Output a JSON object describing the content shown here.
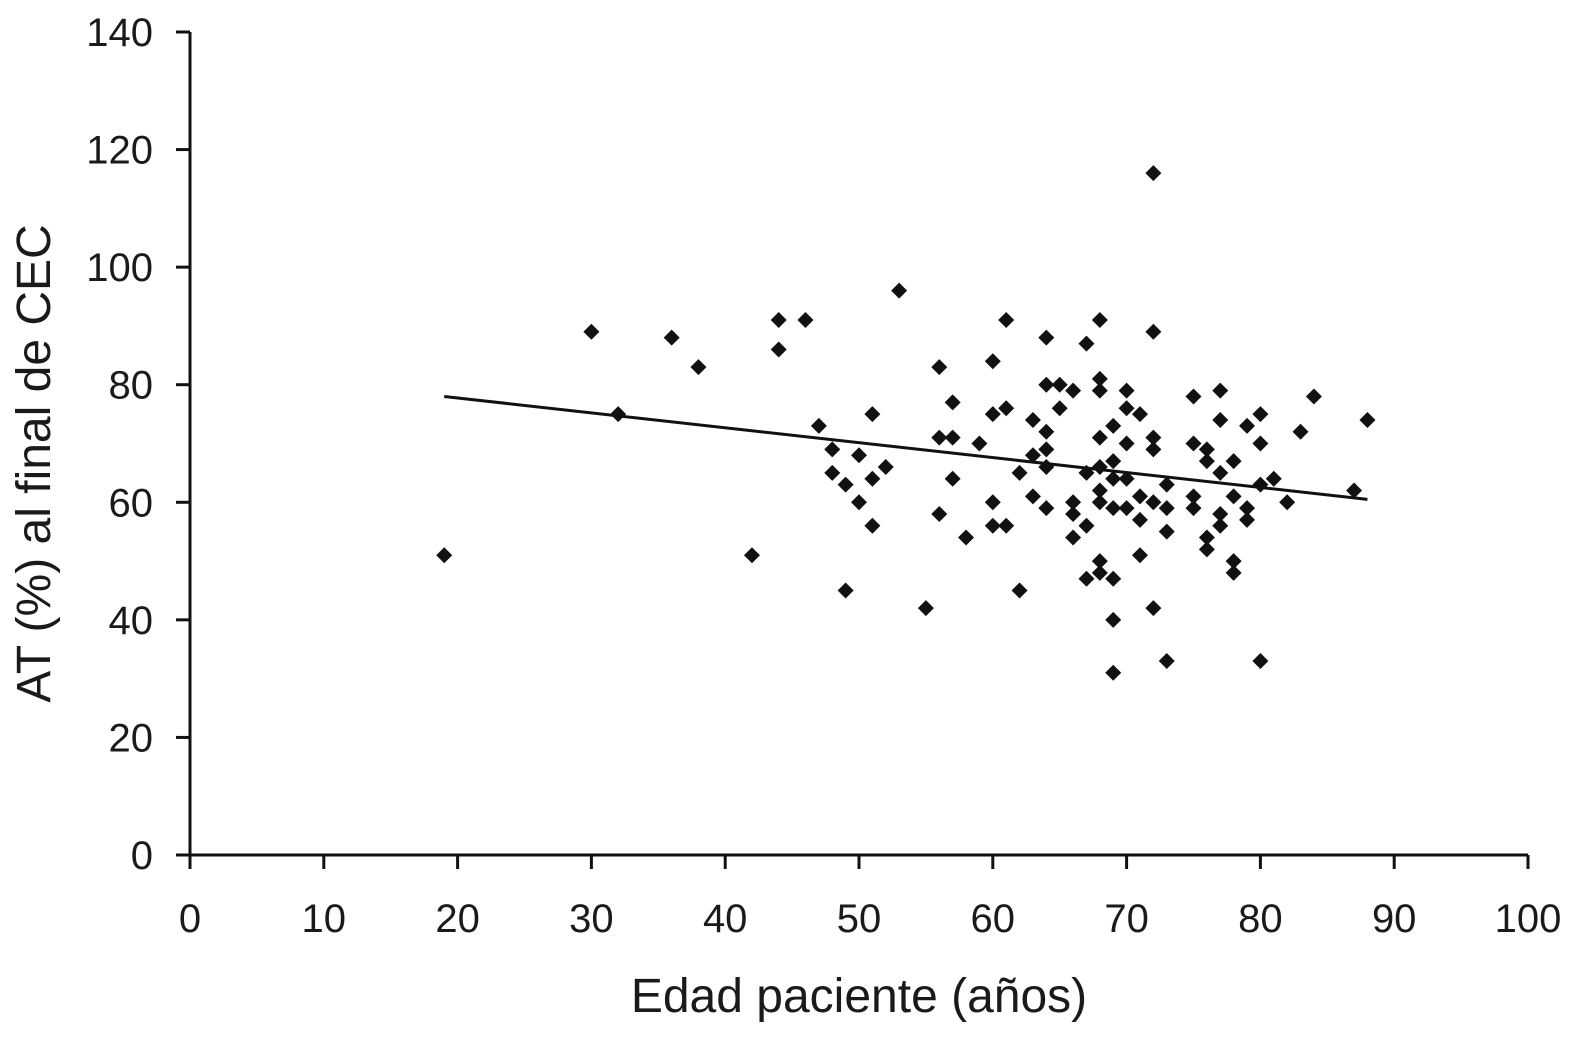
{
  "chart_data": {
    "type": "scatter",
    "title": "",
    "xlabel": "Edad paciente (años)",
    "ylabel": "AT (%) al final de CEC",
    "xlim": [
      0,
      100
    ],
    "ylim": [
      0,
      140
    ],
    "xticks": [
      0,
      10,
      20,
      30,
      40,
      50,
      60,
      70,
      80,
      90,
      100
    ],
    "yticks": [
      0,
      20,
      40,
      60,
      80,
      100,
      120,
      140
    ],
    "grid": false,
    "legend": "none",
    "marker": "diamond",
    "color": "#111111",
    "trendline": {
      "x": [
        19,
        88
      ],
      "y": [
        78,
        60.5
      ]
    },
    "points": [
      {
        "x": 19,
        "y": 51
      },
      {
        "x": 30,
        "y": 89
      },
      {
        "x": 32,
        "y": 75
      },
      {
        "x": 36,
        "y": 88
      },
      {
        "x": 38,
        "y": 83
      },
      {
        "x": 42,
        "y": 51
      },
      {
        "x": 44,
        "y": 91
      },
      {
        "x": 44,
        "y": 86
      },
      {
        "x": 46,
        "y": 91
      },
      {
        "x": 47,
        "y": 73
      },
      {
        "x": 48,
        "y": 69
      },
      {
        "x": 48,
        "y": 65
      },
      {
        "x": 49,
        "y": 63
      },
      {
        "x": 49,
        "y": 45
      },
      {
        "x": 50,
        "y": 68
      },
      {
        "x": 50,
        "y": 60
      },
      {
        "x": 51,
        "y": 75
      },
      {
        "x": 51,
        "y": 64
      },
      {
        "x": 51,
        "y": 56
      },
      {
        "x": 52,
        "y": 66
      },
      {
        "x": 53,
        "y": 96
      },
      {
        "x": 55,
        "y": 42
      },
      {
        "x": 56,
        "y": 83
      },
      {
        "x": 56,
        "y": 71
      },
      {
        "x": 56,
        "y": 58
      },
      {
        "x": 57,
        "y": 77
      },
      {
        "x": 57,
        "y": 71
      },
      {
        "x": 57,
        "y": 64
      },
      {
        "x": 58,
        "y": 54
      },
      {
        "x": 59,
        "y": 70
      },
      {
        "x": 60,
        "y": 84
      },
      {
        "x": 60,
        "y": 75
      },
      {
        "x": 60,
        "y": 60
      },
      {
        "x": 60,
        "y": 56
      },
      {
        "x": 61,
        "y": 91
      },
      {
        "x": 61,
        "y": 76
      },
      {
        "x": 61,
        "y": 56
      },
      {
        "x": 62,
        "y": 65
      },
      {
        "x": 62,
        "y": 45
      },
      {
        "x": 63,
        "y": 74
      },
      {
        "x": 63,
        "y": 68
      },
      {
        "x": 63,
        "y": 61
      },
      {
        "x": 64,
        "y": 88
      },
      {
        "x": 64,
        "y": 80
      },
      {
        "x": 64,
        "y": 72
      },
      {
        "x": 64,
        "y": 69
      },
      {
        "x": 64,
        "y": 66
      },
      {
        "x": 64,
        "y": 59
      },
      {
        "x": 65,
        "y": 80
      },
      {
        "x": 65,
        "y": 76
      },
      {
        "x": 66,
        "y": 79
      },
      {
        "x": 66,
        "y": 60
      },
      {
        "x": 66,
        "y": 58
      },
      {
        "x": 66,
        "y": 54
      },
      {
        "x": 67,
        "y": 87
      },
      {
        "x": 67,
        "y": 65
      },
      {
        "x": 67,
        "y": 56
      },
      {
        "x": 67,
        "y": 47
      },
      {
        "x": 68,
        "y": 91
      },
      {
        "x": 68,
        "y": 81
      },
      {
        "x": 68,
        "y": 79
      },
      {
        "x": 68,
        "y": 71
      },
      {
        "x": 68,
        "y": 66
      },
      {
        "x": 68,
        "y": 62
      },
      {
        "x": 68,
        "y": 60
      },
      {
        "x": 68,
        "y": 50
      },
      {
        "x": 68,
        "y": 48
      },
      {
        "x": 69,
        "y": 73
      },
      {
        "x": 69,
        "y": 67
      },
      {
        "x": 69,
        "y": 64
      },
      {
        "x": 69,
        "y": 59
      },
      {
        "x": 69,
        "y": 47
      },
      {
        "x": 69,
        "y": 40
      },
      {
        "x": 69,
        "y": 31
      },
      {
        "x": 70,
        "y": 79
      },
      {
        "x": 70,
        "y": 76
      },
      {
        "x": 70,
        "y": 70
      },
      {
        "x": 70,
        "y": 64
      },
      {
        "x": 70,
        "y": 59
      },
      {
        "x": 71,
        "y": 75
      },
      {
        "x": 71,
        "y": 61
      },
      {
        "x": 71,
        "y": 57
      },
      {
        "x": 71,
        "y": 51
      },
      {
        "x": 72,
        "y": 116
      },
      {
        "x": 72,
        "y": 89
      },
      {
        "x": 72,
        "y": 71
      },
      {
        "x": 72,
        "y": 69
      },
      {
        "x": 72,
        "y": 60
      },
      {
        "x": 72,
        "y": 42
      },
      {
        "x": 73,
        "y": 63
      },
      {
        "x": 73,
        "y": 59
      },
      {
        "x": 73,
        "y": 55
      },
      {
        "x": 73,
        "y": 33
      },
      {
        "x": 75,
        "y": 78
      },
      {
        "x": 75,
        "y": 70
      },
      {
        "x": 75,
        "y": 61
      },
      {
        "x": 75,
        "y": 59
      },
      {
        "x": 76,
        "y": 69
      },
      {
        "x": 76,
        "y": 67
      },
      {
        "x": 76,
        "y": 54
      },
      {
        "x": 76,
        "y": 52
      },
      {
        "x": 77,
        "y": 79
      },
      {
        "x": 77,
        "y": 74
      },
      {
        "x": 77,
        "y": 65
      },
      {
        "x": 77,
        "y": 58
      },
      {
        "x": 77,
        "y": 56
      },
      {
        "x": 78,
        "y": 67
      },
      {
        "x": 78,
        "y": 61
      },
      {
        "x": 78,
        "y": 50
      },
      {
        "x": 78,
        "y": 48
      },
      {
        "x": 79,
        "y": 73
      },
      {
        "x": 79,
        "y": 59
      },
      {
        "x": 79,
        "y": 57
      },
      {
        "x": 80,
        "y": 75
      },
      {
        "x": 80,
        "y": 70
      },
      {
        "x": 80,
        "y": 63
      },
      {
        "x": 80,
        "y": 33
      },
      {
        "x": 81,
        "y": 64
      },
      {
        "x": 82,
        "y": 60
      },
      {
        "x": 83,
        "y": 72
      },
      {
        "x": 84,
        "y": 78
      },
      {
        "x": 87,
        "y": 62
      },
      {
        "x": 88,
        "y": 74
      }
    ]
  }
}
